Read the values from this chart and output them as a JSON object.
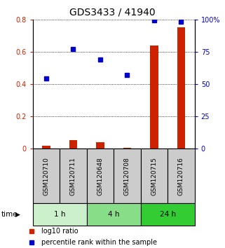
{
  "title": "GDS3433 / 41940",
  "samples": [
    "GSM120710",
    "GSM120711",
    "GSM120648",
    "GSM120708",
    "GSM120715",
    "GSM120716"
  ],
  "time_groups": [
    {
      "label": "1 h",
      "start": 0,
      "end": 2,
      "color": "#ccf0cc"
    },
    {
      "label": "4 h",
      "start": 2,
      "end": 4,
      "color": "#88dd88"
    },
    {
      "label": "24 h",
      "start": 4,
      "end": 6,
      "color": "#33cc33"
    }
  ],
  "log10_ratio": [
    0.02,
    0.055,
    0.04,
    0.008,
    0.64,
    0.755
  ],
  "percentile_rank": [
    0.435,
    0.62,
    0.555,
    0.46,
    0.795,
    0.79
  ],
  "left_ylim": [
    0.0,
    0.8
  ],
  "left_yticks": [
    0.0,
    0.2,
    0.4,
    0.6,
    0.8
  ],
  "left_ytick_labels": [
    "0",
    "0.2",
    "0.4",
    "0.6",
    "0.8"
  ],
  "right_yticks_val": [
    0.0,
    0.2,
    0.4,
    0.6,
    0.8
  ],
  "right_ytick_labels": [
    "0",
    "25",
    "50",
    "75",
    "100%"
  ],
  "bar_color": "#cc2200",
  "dot_color": "#0000cc",
  "sample_box_color": "#cccccc",
  "time_label": "time",
  "legend_bar": "log10 ratio",
  "legend_dot": "percentile rank within the sample",
  "title_fontsize": 10,
  "label_fontsize": 6.5,
  "tick_fontsize": 7
}
